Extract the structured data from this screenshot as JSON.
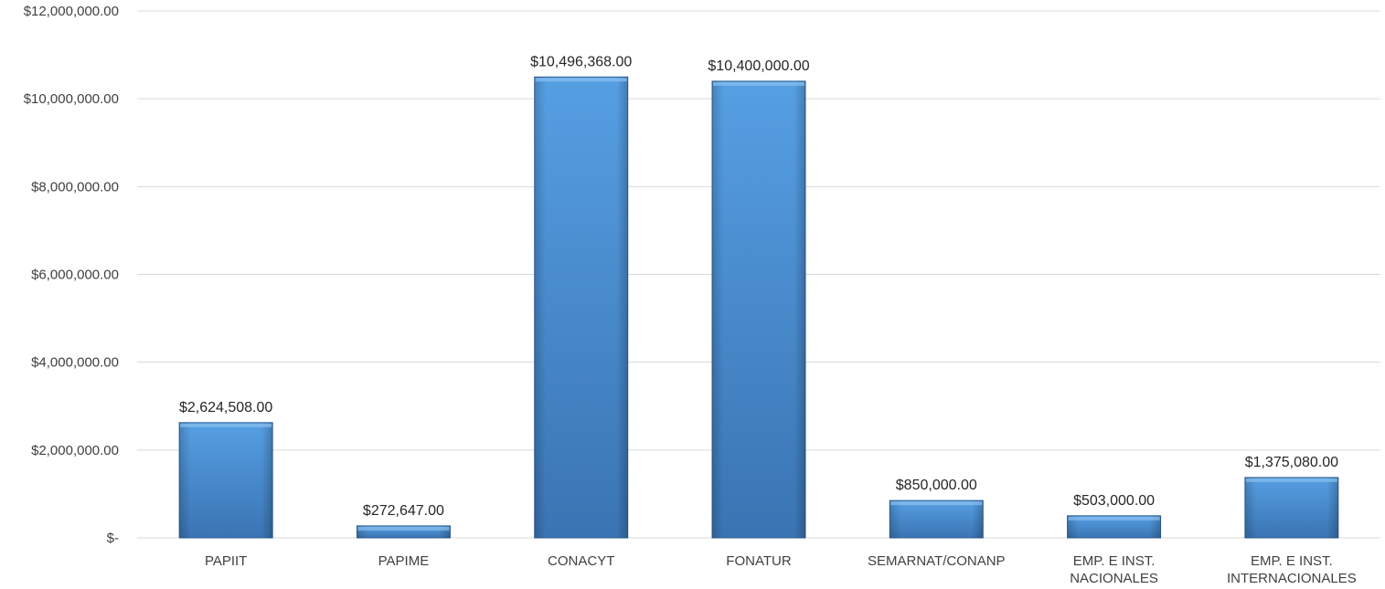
{
  "chart_data": {
    "type": "bar",
    "title": "",
    "xlabel": "",
    "ylabel": "",
    "categories": [
      [
        "PAPIIT"
      ],
      [
        "PAPIME"
      ],
      [
        "CONACYT"
      ],
      [
        "FONATUR"
      ],
      [
        "SEMARNAT/CONANP"
      ],
      [
        "EMP. E INST.",
        "NACIONALES"
      ],
      [
        "EMP. E INST.",
        "INTERNACIONALES"
      ]
    ],
    "values": [
      2624508,
      272647,
      10496368,
      10400000,
      850000,
      503000,
      1375080
    ],
    "data_labels": [
      "$2,624,508.00",
      "$272,647.00",
      "$10,496,368.00",
      "$10,400,000.00",
      "$850,000.00",
      "$503,000.00",
      "$1,375,080.00"
    ],
    "ylim": [
      0,
      12000000
    ],
    "yticks": [
      0,
      2000000,
      4000000,
      6000000,
      8000000,
      10000000,
      12000000
    ],
    "ytick_labels": [
      "$-",
      "$2,000,000.00",
      "$4,000,000.00",
      "$6,000,000.00",
      "$8,000,000.00",
      "$10,000,000.00",
      "$12,000,000.00"
    ],
    "grid": true,
    "legend": "none",
    "colors": {
      "bar_top": "#569fe3",
      "bar_bottom": "#3a74b3",
      "bar_edge": "#2f5f94",
      "grid": "#d9d9d9",
      "text": "#404040"
    }
  }
}
